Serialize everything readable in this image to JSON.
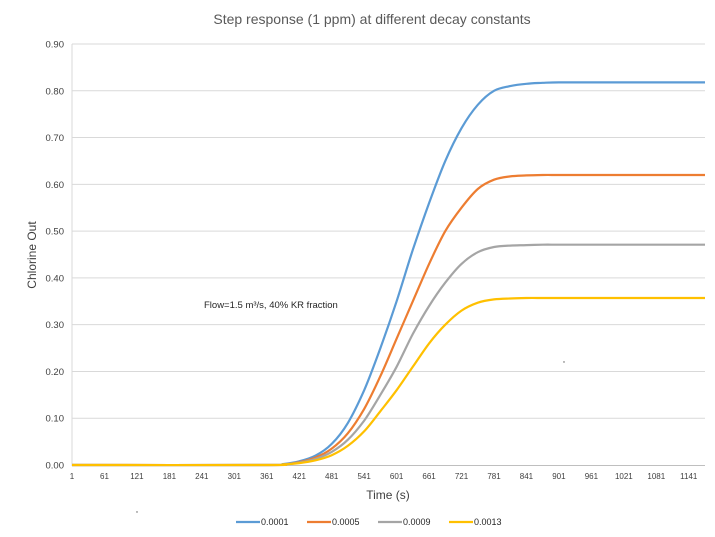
{
  "chart_data": {
    "type": "line",
    "title": "Step response  (1 ppm)  at different  decay constants",
    "xlabel": "Time (s)",
    "ylabel": "Chlorine Out",
    "ylim": [
      0,
      0.9
    ],
    "xlim": [
      1,
      1171
    ],
    "grid": true,
    "legend_position": "bottom",
    "y_ticks": [
      "0.00",
      "0.10",
      "0.20",
      "0.30",
      "0.40",
      "0.50",
      "0.60",
      "0.70",
      "0.80",
      "0.90"
    ],
    "x_ticks": [
      "1",
      "61",
      "121",
      "181",
      "241",
      "301",
      "361",
      "421",
      "481",
      "541",
      "601",
      "661",
      "721",
      "781",
      "841",
      "901",
      "961",
      "1021",
      "1081",
      "1141"
    ],
    "x": [
      1,
      361,
      391,
      421,
      451,
      481,
      511,
      541,
      571,
      601,
      631,
      661,
      691,
      721,
      751,
      781,
      811,
      841,
      871,
      901,
      961,
      1021,
      1081,
      1141,
      1171
    ],
    "series": [
      {
        "name": "0.0001",
        "color": "#5b9bd5",
        "values": [
          0,
          0,
          0.002,
          0.008,
          0.02,
          0.045,
          0.09,
          0.16,
          0.25,
          0.35,
          0.46,
          0.56,
          0.65,
          0.72,
          0.77,
          0.8,
          0.81,
          0.815,
          0.817,
          0.818,
          0.818,
          0.818,
          0.818,
          0.818,
          0.818
        ]
      },
      {
        "name": "0.0005",
        "color": "#ed7d31",
        "values": [
          0,
          0,
          0.001,
          0.006,
          0.016,
          0.035,
          0.068,
          0.12,
          0.19,
          0.27,
          0.35,
          0.43,
          0.5,
          0.55,
          0.59,
          0.61,
          0.617,
          0.619,
          0.62,
          0.62,
          0.62,
          0.62,
          0.62,
          0.62,
          0.62
        ]
      },
      {
        "name": "0.0009",
        "color": "#a5a5a5",
        "values": [
          0,
          0,
          0.001,
          0.005,
          0.013,
          0.028,
          0.054,
          0.095,
          0.15,
          0.21,
          0.28,
          0.34,
          0.39,
          0.43,
          0.455,
          0.466,
          0.469,
          0.47,
          0.471,
          0.471,
          0.471,
          0.471,
          0.471,
          0.471,
          0.471
        ]
      },
      {
        "name": "0.0013",
        "color": "#ffc000",
        "values": [
          0,
          0,
          0.001,
          0.004,
          0.01,
          0.021,
          0.041,
          0.072,
          0.115,
          0.16,
          0.21,
          0.26,
          0.3,
          0.33,
          0.347,
          0.354,
          0.356,
          0.357,
          0.357,
          0.357,
          0.357,
          0.357,
          0.357,
          0.357,
          0.357
        ]
      }
    ],
    "annotation": "Flow=1.5 m³/s, 40% KR fraction"
  }
}
